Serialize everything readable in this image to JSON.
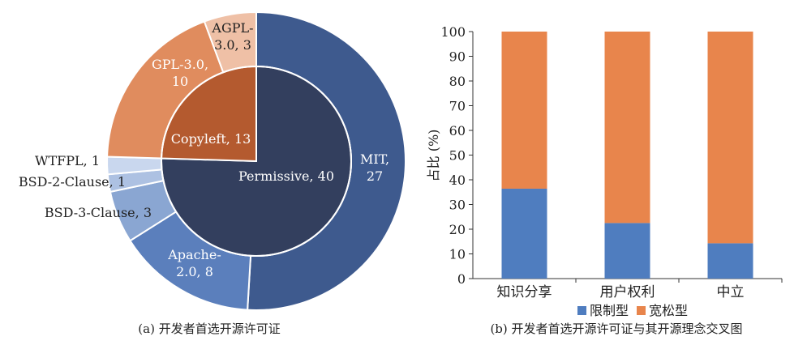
{
  "chart_data": [
    {
      "type": "pie",
      "caption": "(a) 开发者首选开源许可证",
      "inner": [
        {
          "label": "Permissive",
          "value": 40,
          "color": "#333f5e"
        },
        {
          "label": "Copyleft",
          "value": 13,
          "color": "#b45a2f"
        }
      ],
      "outer": [
        {
          "label": "MIT",
          "value": 27,
          "color": "#3e5a8e",
          "text": [
            "MIT,",
            "27"
          ]
        },
        {
          "label": "Apache-2.0",
          "value": 8,
          "color": "#5b7fbc",
          "text": [
            "Apache-",
            "2.0, 8"
          ]
        },
        {
          "label": "BSD-3-Clause",
          "value": 3,
          "color": "#8aa6d2",
          "text": [
            "BSD-3-Clause, 3"
          ]
        },
        {
          "label": "BSD-2-Clause",
          "value": 1,
          "color": "#adc1e2",
          "text": [
            "BSD-2-Clause, 1"
          ]
        },
        {
          "label": "WTFPL",
          "value": 1,
          "color": "#c9d7ee",
          "text": [
            "WTFPL, 1"
          ]
        },
        {
          "label": "GPL-3.0",
          "value": 10,
          "color": "#e08c5e",
          "text": [
            "GPL-3.0,",
            "10"
          ]
        },
        {
          "label": "AGPL-3.0",
          "value": 3,
          "color": "#efc0a6",
          "text": [
            "AGPL-",
            "3.0, 3"
          ]
        }
      ],
      "inner_text": {
        "Permissive": "Permissive, 40",
        "Copyleft": "Copyleft, 13"
      }
    },
    {
      "type": "bar",
      "stacked": true,
      "caption": "(b) 开发者首选开源许可证与其开源理念交叉图",
      "categories": [
        "知识分享",
        "用户权利",
        "中立"
      ],
      "series": [
        {
          "name": "限制型",
          "values": [
            36.4,
            22.5,
            14.3
          ],
          "color": "#4f7dbf"
        },
        {
          "name": "宽松型",
          "values": [
            63.6,
            77.5,
            85.7
          ],
          "color": "#e8854c"
        }
      ],
      "ylabel": "占比 (%)",
      "ylim": [
        0,
        100
      ],
      "yticks": [
        0,
        10,
        20,
        30,
        40,
        50,
        60,
        70,
        80,
        90,
        100
      ],
      "legend_position": "bottom"
    }
  ]
}
